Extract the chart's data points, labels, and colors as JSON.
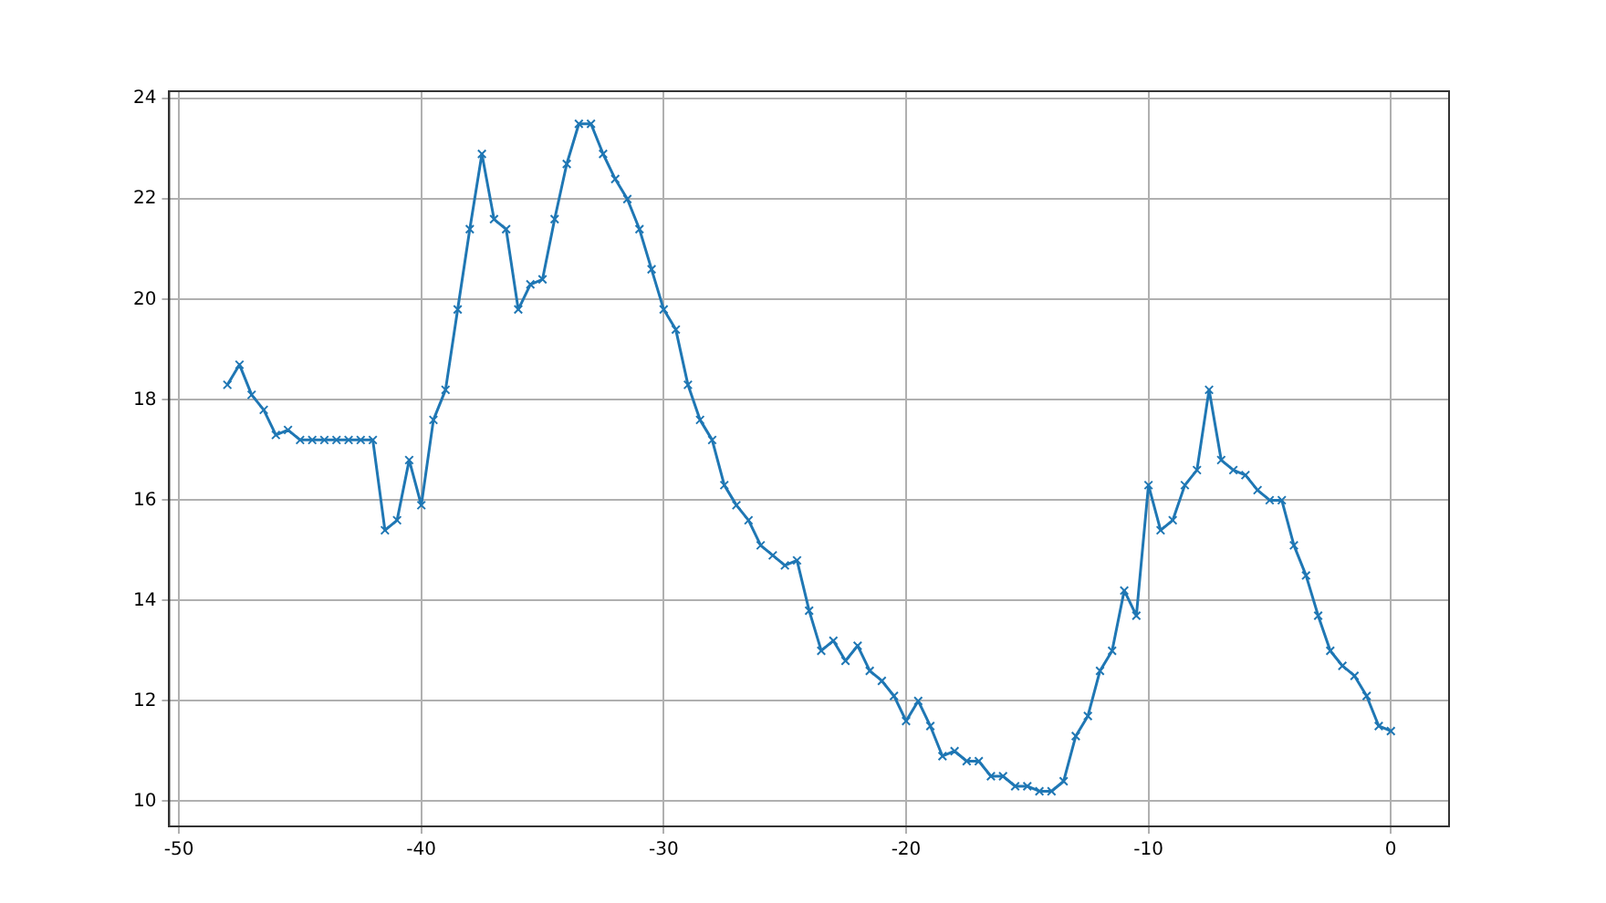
{
  "chart_data": {
    "type": "line",
    "x": [
      -48,
      -47.5,
      -47,
      -46.5,
      -46,
      -45.5,
      -45,
      -44.5,
      -44,
      -43.5,
      -43,
      -42.5,
      -42,
      -41.5,
      -41,
      -40.5,
      -40,
      -39.5,
      -39,
      -38.5,
      -38,
      -37.5,
      -37,
      -36.5,
      -36,
      -35.5,
      -35,
      -34.5,
      -34,
      -33.5,
      -33,
      -32.5,
      -32,
      -31.5,
      -31,
      -30.5,
      -30,
      -29.5,
      -29,
      -28.5,
      -28,
      -27.5,
      -27,
      -26.5,
      -26,
      -25.5,
      -25,
      -24.5,
      -24,
      -23.5,
      -23,
      -22.5,
      -22,
      -21.5,
      -21,
      -20.5,
      -20,
      -19.5,
      -19,
      -18.5,
      -18,
      -17.5,
      -17,
      -16.5,
      -16,
      -15.5,
      -15,
      -14.5,
      -14,
      -13.5,
      -13,
      -12.5,
      -12,
      -11.5,
      -11,
      -10.5,
      -10,
      -9.5,
      -9,
      -8.5,
      -8,
      -7.5,
      -7,
      -6.5,
      -6,
      -5.5,
      -5,
      -4.5,
      -4,
      -3.5,
      -3,
      -2.5,
      -2,
      -1.5,
      -1,
      -0.5,
      0
    ],
    "series": [
      {
        "color": "#1f77b4",
        "values": [
          18.3,
          18.7,
          18.1,
          17.8,
          17.3,
          17.4,
          17.2,
          17.2,
          17.2,
          17.2,
          17.2,
          17.2,
          17.2,
          15.4,
          15.6,
          16.8,
          15.9,
          17.6,
          18.2,
          19.8,
          21.4,
          22.9,
          21.6,
          21.4,
          19.8,
          20.3,
          20.4,
          21.6,
          22.7,
          23.5,
          23.5,
          22.9,
          22.4,
          22.0,
          21.4,
          20.6,
          19.8,
          19.4,
          18.3,
          17.6,
          17.2,
          16.3,
          15.9,
          15.6,
          15.1,
          14.9,
          14.7,
          14.8,
          13.8,
          13.0,
          13.2,
          12.8,
          13.1,
          12.6,
          12.4,
          12.1,
          11.6,
          12.0,
          11.5,
          10.9,
          11.0,
          10.8,
          10.8,
          10.5,
          10.5,
          10.3,
          10.3,
          10.2,
          10.2,
          10.4,
          11.3,
          11.7,
          12.6,
          13.0,
          14.2,
          13.7,
          16.3,
          15.4,
          15.6,
          16.3,
          16.6,
          18.2,
          16.8,
          16.6,
          16.5,
          16.2,
          16.0,
          16.0,
          15.1,
          14.5,
          13.7,
          13.0,
          12.7,
          12.5,
          12.1,
          11.5,
          11.4
        ]
      }
    ],
    "xlim": [
      -50.4,
      2.4
    ],
    "xticks": [
      -50,
      -40,
      -30,
      -20,
      -10,
      0
    ],
    "ylim": [
      9.5,
      24.15
    ],
    "yticks": [
      10,
      12,
      14,
      16,
      18,
      20,
      22,
      24
    ],
    "grid": true,
    "marker": "cross",
    "line_style": "solid",
    "legend": false
  }
}
